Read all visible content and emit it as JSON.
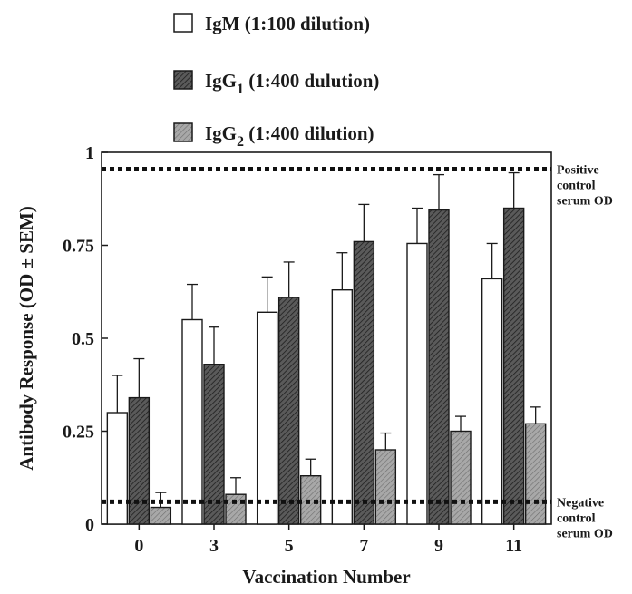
{
  "chart_data": {
    "type": "bar",
    "title": "",
    "xlabel": "Vaccination Number",
    "ylabel": "Antibody Response (OD ± SEM)",
    "categories": [
      "0",
      "3",
      "5",
      "7",
      "9",
      "11"
    ],
    "ylim": [
      0,
      1
    ],
    "yticks": [
      "0",
      "0.25",
      "0.5",
      "0.75",
      "1"
    ],
    "grid": false,
    "legend_position": "top",
    "series": [
      {
        "legend_main": "IgM",
        "legend_sub": "",
        "legend_note": " (1:100 dilution)",
        "fill": "open",
        "values": [
          0.3,
          0.55,
          0.57,
          0.63,
          0.755,
          0.66
        ],
        "errors": [
          0.1,
          0.095,
          0.095,
          0.1,
          0.095,
          0.095
        ]
      },
      {
        "legend_main": "IgG",
        "legend_sub": "1",
        "legend_note": " (1:400 dulution)",
        "fill": "dark-hatch",
        "values": [
          0.34,
          0.43,
          0.61,
          0.76,
          0.845,
          0.85
        ],
        "errors": [
          0.105,
          0.1,
          0.095,
          0.1,
          0.095,
          0.095
        ]
      },
      {
        "legend_main": "IgG",
        "legend_sub": "2",
        "legend_note": " (1:400 dilution)",
        "fill": "light-hatch",
        "values": [
          0.045,
          0.08,
          0.13,
          0.2,
          0.25,
          0.27
        ],
        "errors": [
          0.04,
          0.045,
          0.045,
          0.045,
          0.04,
          0.045
        ]
      }
    ],
    "reference_lines": [
      {
        "value": 0.955,
        "label_lines": [
          "Positive",
          "control",
          "serum OD"
        ]
      },
      {
        "value": 0.06,
        "label_lines": [
          "Negative",
          "control",
          "serum OD"
        ]
      }
    ]
  }
}
